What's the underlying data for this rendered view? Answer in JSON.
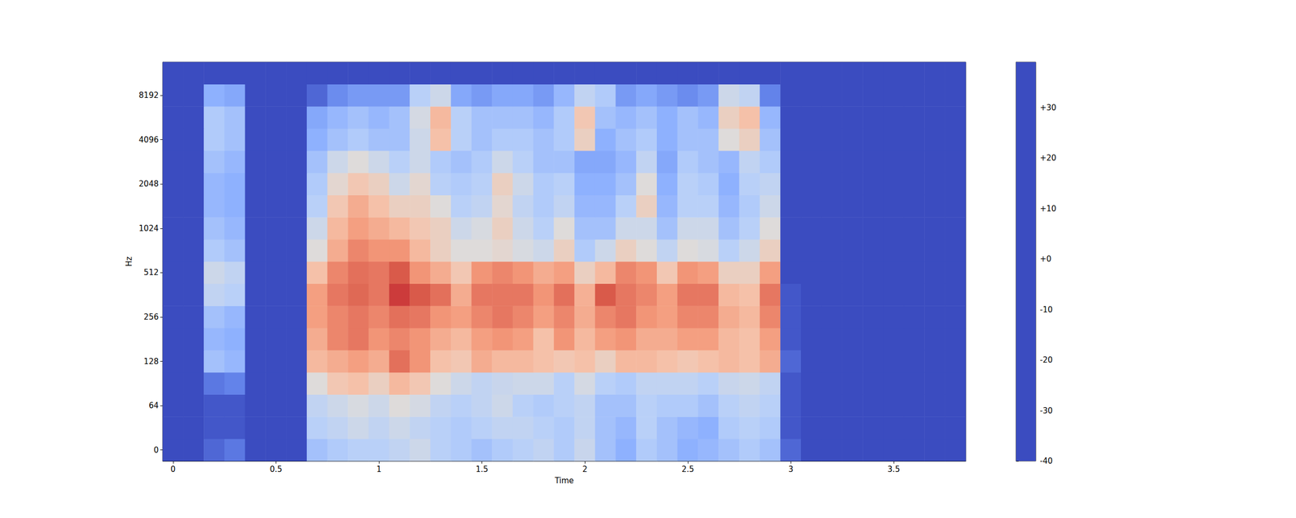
{
  "chart_data": {
    "type": "heatmap",
    "x_label": "Time",
    "y_label": "Hz",
    "categories": [
      0,
      null,
      null,
      null,
      null,
      0.5,
      null,
      null,
      null,
      null,
      1,
      null,
      null,
      null,
      null,
      1.5,
      null,
      null,
      null,
      null,
      2,
      null,
      null,
      null,
      null,
      2.5,
      null,
      null,
      null,
      null,
      3,
      null,
      null,
      null,
      null,
      3.5,
      null,
      null,
      null
    ],
    "y_categories": [
      0,
      null,
      64,
      null,
      128,
      null,
      256,
      null,
      512,
      null,
      1024,
      null,
      2048,
      null,
      4096,
      null,
      8192,
      null
    ],
    "z": [
      [
        -40,
        -40,
        -35,
        -32,
        -40,
        -40,
        -40,
        -15,
        -12,
        -10,
        -10,
        -8,
        -5,
        -10,
        -12,
        -15,
        -12,
        -10,
        -8,
        -12,
        -6,
        -15,
        -20,
        -12,
        -15,
        -20,
        -18,
        -15,
        -12,
        -15,
        -35,
        -40,
        -40,
        -40,
        -40,
        -40,
        -40,
        -40,
        -40
      ],
      [
        -40,
        -40,
        -38,
        -38,
        -40,
        -40,
        -40,
        -10,
        -8,
        -5,
        -8,
        -5,
        -8,
        -10,
        -12,
        -10,
        -8,
        -8,
        -10,
        -12,
        -8,
        -15,
        -18,
        -10,
        -15,
        -18,
        -20,
        -12,
        -10,
        -12,
        -38,
        -40,
        -40,
        -40,
        -40,
        -40,
        -40,
        -40,
        -40
      ],
      [
        -40,
        -40,
        -38,
        -38,
        -40,
        -40,
        -40,
        -8,
        -5,
        -2,
        -5,
        0,
        -3,
        -8,
        -10,
        -8,
        -5,
        -10,
        -12,
        -10,
        -8,
        -15,
        -15,
        -10,
        -12,
        -12,
        -15,
        -10,
        -8,
        -10,
        -38,
        -40,
        -40,
        -40,
        -40,
        -40,
        -40,
        -40,
        -40
      ],
      [
        -40,
        -40,
        -32,
        -30,
        -40,
        -40,
        -40,
        0,
        8,
        10,
        5,
        12,
        8,
        0,
        -5,
        -8,
        -6,
        -5,
        -5,
        -10,
        -3,
        -10,
        -12,
        -8,
        -8,
        -8,
        -10,
        -6,
        -5,
        -8,
        -38,
        -40,
        -40,
        -40,
        -40,
        -40,
        -40,
        -40,
        -40
      ],
      [
        -40,
        -40,
        -15,
        -18,
        -40,
        -40,
        -40,
        12,
        15,
        18,
        15,
        25,
        20,
        10,
        8,
        15,
        12,
        12,
        10,
        8,
        10,
        5,
        12,
        12,
        10,
        8,
        10,
        12,
        10,
        15,
        -35,
        -40,
        -40,
        -40,
        -40,
        -40,
        -40,
        -40,
        -40
      ],
      [
        -40,
        -40,
        -18,
        -20,
        -40,
        -40,
        -40,
        15,
        22,
        24,
        20,
        22,
        20,
        15,
        12,
        18,
        20,
        18,
        10,
        20,
        12,
        18,
        20,
        15,
        15,
        18,
        18,
        12,
        10,
        18,
        -38,
        -40,
        -40,
        -40,
        -40,
        -40,
        -40,
        -40,
        -40
      ],
      [
        -40,
        -40,
        -15,
        -18,
        -40,
        -40,
        -40,
        18,
        22,
        24,
        22,
        25,
        24,
        20,
        18,
        22,
        24,
        22,
        18,
        22,
        15,
        22,
        24,
        20,
        18,
        22,
        22,
        15,
        12,
        22,
        -38,
        -40,
        -40,
        -40,
        -40,
        -40,
        -40,
        -40,
        -40
      ],
      [
        -40,
        -40,
        -8,
        -10,
        -40,
        -40,
        -40,
        18,
        24,
        26,
        24,
        32,
        28,
        25,
        15,
        24,
        24,
        24,
        20,
        25,
        14,
        28,
        24,
        22,
        18,
        24,
        24,
        12,
        10,
        24,
        -38,
        -40,
        -40,
        -40,
        -40,
        -40,
        -40,
        -40,
        -40
      ],
      [
        -40,
        -40,
        -5,
        -8,
        -40,
        -40,
        -40,
        10,
        22,
        25,
        24,
        28,
        20,
        15,
        8,
        20,
        22,
        20,
        15,
        18,
        5,
        12,
        22,
        20,
        8,
        20,
        18,
        5,
        5,
        18,
        -40,
        -40,
        -40,
        -40,
        -40,
        -40,
        -40,
        -40,
        -40
      ],
      [
        -40,
        -40,
        -12,
        -15,
        -40,
        -40,
        -40,
        0,
        15,
        22,
        20,
        20,
        12,
        5,
        0,
        0,
        2,
        -2,
        -5,
        5,
        -12,
        -5,
        5,
        0,
        -8,
        0,
        -2,
        -10,
        -5,
        5,
        -40,
        -40,
        -40,
        -40,
        -40,
        -40,
        -40,
        -40,
        -40
      ],
      [
        -40,
        -40,
        -15,
        -18,
        -40,
        -40,
        -40,
        -5,
        12,
        18,
        15,
        12,
        8,
        5,
        -5,
        -2,
        5,
        -5,
        -10,
        0,
        -15,
        -15,
        -5,
        -5,
        -15,
        -5,
        -5,
        -15,
        -10,
        0,
        -40,
        -40,
        -40,
        -40,
        -40,
        -40,
        -40,
        -40,
        -40
      ],
      [
        -40,
        -40,
        -18,
        -20,
        -40,
        -40,
        -40,
        -10,
        8,
        15,
        10,
        5,
        5,
        0,
        -10,
        -8,
        2,
        -8,
        -12,
        -8,
        -18,
        -18,
        -10,
        5,
        -18,
        -10,
        -10,
        -18,
        -12,
        -5,
        -40,
        -40,
        -40,
        -40,
        -40,
        -40,
        -40,
        -40,
        -40
      ],
      [
        -40,
        -40,
        -18,
        -20,
        -40,
        -40,
        -40,
        -12,
        2,
        8,
        5,
        -5,
        2,
        -10,
        -12,
        -10,
        5,
        -5,
        -12,
        -10,
        -20,
        -20,
        -15,
        0,
        -20,
        -10,
        -12,
        -20,
        -10,
        -8,
        -40,
        -40,
        -40,
        -40,
        -40,
        -40,
        -40,
        -40,
        -40
      ],
      [
        -40,
        -40,
        -15,
        -18,
        -40,
        -40,
        -40,
        -15,
        -5,
        0,
        -5,
        -10,
        -5,
        -12,
        -15,
        -12,
        -5,
        -10,
        -15,
        -15,
        -22,
        -22,
        -18,
        -8,
        -22,
        -12,
        -15,
        -18,
        -8,
        -12,
        -40,
        -40,
        -40,
        -40,
        -40,
        -40,
        -40,
        -40,
        -40
      ],
      [
        -40,
        -40,
        -12,
        -15,
        -40,
        -40,
        -40,
        -20,
        -15,
        -12,
        -15,
        -15,
        -5,
        10,
        -10,
        -15,
        -12,
        -12,
        -15,
        -12,
        5,
        -20,
        -15,
        -12,
        -20,
        -15,
        -15,
        0,
        5,
        -15,
        -40,
        -40,
        -40,
        -40,
        -40,
        -40,
        -40,
        -40,
        -40
      ],
      [
        -40,
        -40,
        -12,
        -15,
        -40,
        -40,
        -40,
        -22,
        -18,
        -15,
        -18,
        -15,
        -3,
        12,
        -10,
        -15,
        -15,
        -15,
        -18,
        -12,
        8,
        -15,
        -18,
        -15,
        -20,
        -15,
        -18,
        5,
        10,
        -18,
        -40,
        -40,
        -40,
        -40,
        -40,
        -40,
        -40,
        -40,
        -40
      ],
      [
        -40,
        -40,
        -20,
        -22,
        -40,
        -40,
        -40,
        -35,
        -28,
        -25,
        -25,
        -25,
        -10,
        -5,
        -22,
        -25,
        -22,
        -22,
        -25,
        -18,
        -8,
        -12,
        -25,
        -22,
        -25,
        -28,
        -25,
        -5,
        -8,
        -30,
        -40,
        -40,
        -40,
        -40,
        -40,
        -40,
        -40,
        -40,
        -40
      ],
      [
        -40,
        -40,
        -40,
        -40,
        -40,
        -40,
        -40,
        -40,
        -40,
        -40,
        -40,
        -40,
        -40,
        -40,
        -40,
        -40,
        -40,
        -40,
        -40,
        -40,
        -40,
        -40,
        -40,
        -40,
        -40,
        -40,
        -40,
        -40,
        -40,
        -40,
        -40,
        -40,
        -40,
        -40,
        -40,
        -40,
        -40,
        -40,
        -40
      ]
    ],
    "colorbar": {
      "lim": [
        -40,
        39
      ],
      "ticks": [
        -40,
        -30,
        -20,
        -10,
        {
          "value": 0,
          "label": "+0"
        },
        {
          "value": 10,
          "label": "+10"
        },
        {
          "value": 20,
          "label": "+20"
        },
        {
          "value": 30,
          "label": "+30"
        }
      ]
    }
  }
}
